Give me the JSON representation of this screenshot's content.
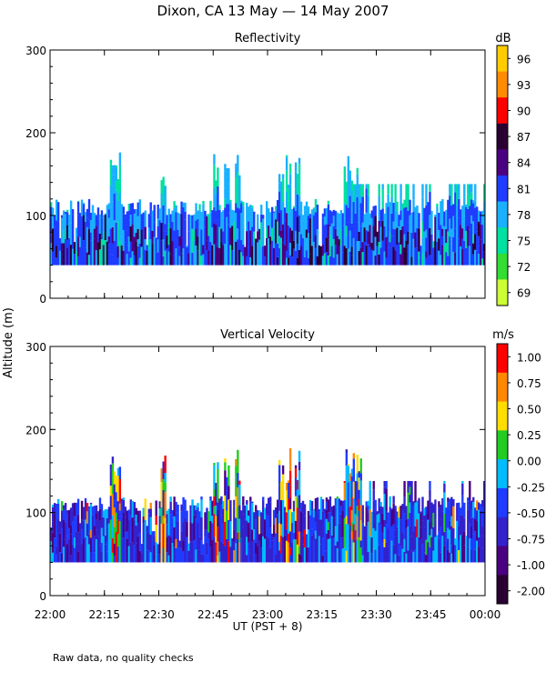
{
  "title": "Dixon, CA 13 May — 14 May 2007",
  "ylabel": "Altitude (m)",
  "xlabel": "UT  (PST + 8)",
  "footnote": "Raw data, no quality checks",
  "x_ticks": [
    "22:00",
    "22:15",
    "22:30",
    "22:45",
    "23:00",
    "23:15",
    "23:30",
    "23:45",
    "00:00"
  ],
  "chart_data": [
    {
      "type": "heatmap",
      "title": "Reflectivity",
      "xlabel": "UT  (PST + 8)",
      "ylabel": "Altitude (m)",
      "xlim": [
        "22:00",
        "00:00"
      ],
      "ylim": [
        0,
        300
      ],
      "y_ticks": [
        "0",
        "100",
        "200",
        "300"
      ],
      "colorbar": {
        "unit": "dB",
        "tick_labels": [
          "96",
          "93",
          "90",
          "87",
          "84",
          "81",
          "78",
          "75",
          "72",
          "69"
        ],
        "colors": [
          "#ffcc00",
          "#ff8c00",
          "#ff0000",
          "#2a0033",
          "#4b0082",
          "#1f3cff",
          "#1ab0ff",
          "#00e0a0",
          "#33dd33",
          "#ccff33"
        ]
      },
      "data_bottom_altitude": 40,
      "typical_top_altitude": 120,
      "max_top_altitude": 180,
      "notes": "Echo layer from ~40 m to ~120 m, occasional spikes to ~180 m near 22:17 and 23:03"
    },
    {
      "type": "heatmap",
      "title": "Vertical Velocity",
      "xlabel": "UT  (PST + 8)",
      "ylabel": "Altitude (m)",
      "xlim": [
        "22:00",
        "00:00"
      ],
      "ylim": [
        0,
        300
      ],
      "y_ticks": [
        "0",
        "100",
        "200",
        "300"
      ],
      "colorbar": {
        "unit": "m/s",
        "tick_labels": [
          "1.00",
          "0.75",
          "0.50",
          "0.25",
          "0.00",
          "-0.25",
          "-0.50",
          "-0.75",
          "-1.00",
          "-2.00"
        ],
        "colors": [
          "#ff0000",
          "#ff8800",
          "#ffdd00",
          "#22cc22",
          "#00bbff",
          "#1f3cff",
          "#3322cc",
          "#4b0082",
          "#2a0033"
        ]
      },
      "data_bottom_altitude": 40,
      "typical_top_altitude": 120,
      "max_top_altitude": 180,
      "notes": "Mostly -0.25 to -0.75 m/s downward; updraft columns up to 1.00 m/s near 22:17, 22:45, 22:53, 23:03, 23:25"
    }
  ]
}
